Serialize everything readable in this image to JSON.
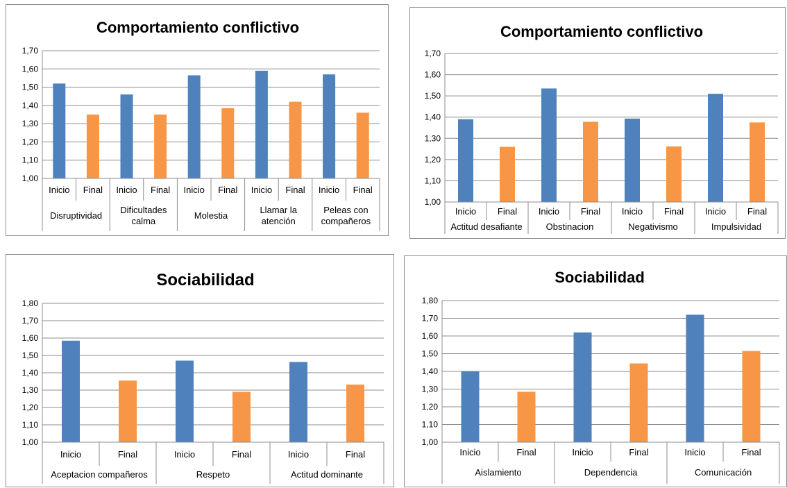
{
  "colors": {
    "inicio": "#4f81bd",
    "final": "#f79646"
  },
  "chart_data": [
    {
      "type": "bar",
      "title": "Comportamiento conflictivo",
      "ylim": [
        1.0,
        1.7
      ],
      "yticks": [
        "1,00",
        "1,10",
        "1,20",
        "1,30",
        "1,40",
        "1,50",
        "1,60",
        "1,70"
      ],
      "grid": true,
      "groups": [
        "Disruptividad",
        "Dificultades calma",
        "Molestia",
        "Llamar la atención",
        "Peleas con compañeros"
      ],
      "categories": [
        "Inicio",
        "Final"
      ],
      "values": [
        [
          1.52,
          1.35
        ],
        [
          1.46,
          1.35
        ],
        [
          1.565,
          1.385
        ],
        [
          1.59,
          1.42
        ],
        [
          1.57,
          1.36
        ]
      ]
    },
    {
      "type": "bar",
      "title": "Comportamiento conflictivo",
      "ylim": [
        1.0,
        1.7
      ],
      "yticks": [
        "1,00",
        "1,10",
        "1,20",
        "1,30",
        "1,40",
        "1,50",
        "1,60",
        "1,70"
      ],
      "grid": true,
      "groups": [
        "Actitud desafiante",
        "Obstinacion",
        "Negativismo",
        "Impulsividad"
      ],
      "categories": [
        "Inicio",
        "Final"
      ],
      "values": [
        [
          1.39,
          1.26
        ],
        [
          1.535,
          1.378
        ],
        [
          1.393,
          1.262
        ],
        [
          1.51,
          1.375
        ]
      ]
    },
    {
      "type": "bar",
      "title": "Sociabilidad",
      "ylim": [
        1.0,
        1.8
      ],
      "yticks": [
        "1,00",
        "1,10",
        "1,20",
        "1,30",
        "1,40",
        "1,50",
        "1,60",
        "1,70",
        "1,80"
      ],
      "grid": true,
      "groups": [
        "Aceptacion compañeros",
        "Respeto",
        "Actitud dominante"
      ],
      "categories": [
        "Inicio",
        "Final"
      ],
      "values": [
        [
          1.585,
          1.355
        ],
        [
          1.47,
          1.29
        ],
        [
          1.462,
          1.332
        ]
      ]
    },
    {
      "type": "bar",
      "title": "Sociabilidad",
      "ylim": [
        1.0,
        1.8
      ],
      "yticks": [
        "1,00",
        "1,10",
        "1,20",
        "1,30",
        "1,40",
        "1,50",
        "1,60",
        "1,70",
        "1,80"
      ],
      "grid": true,
      "groups": [
        "Aislamiento",
        "Dependencia",
        "Comunicación"
      ],
      "categories": [
        "Inicio",
        "Final"
      ],
      "values": [
        [
          1.4,
          1.285
        ],
        [
          1.62,
          1.445
        ],
        [
          1.72,
          1.515
        ]
      ]
    }
  ]
}
